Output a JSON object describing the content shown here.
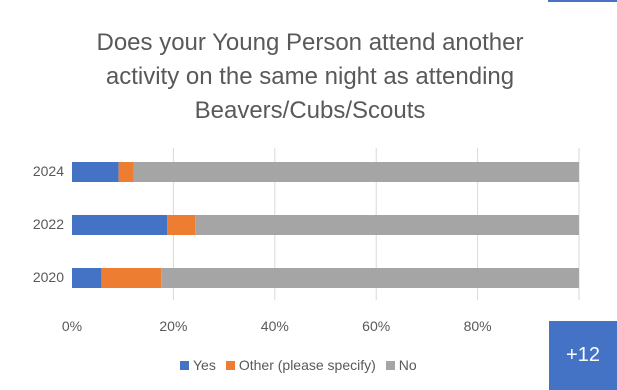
{
  "chart_data": {
    "type": "bar",
    "orientation": "horizontal",
    "stacked": true,
    "title_lines": [
      "Does your Young Person attend another",
      "activity on the same night as attending",
      "Beavers/Cubs/Scouts"
    ],
    "categories": [
      "2024",
      "2022",
      "2020"
    ],
    "series": [
      {
        "name": "Yes",
        "color": "#4472c4",
        "values": [
          9.2,
          18.8,
          5.8
        ]
      },
      {
        "name": "Other (please specify)",
        "color": "#ed7d31",
        "values": [
          3.0,
          5.5,
          11.8
        ]
      },
      {
        "name": "No",
        "color": "#a5a5a5",
        "values": [
          87.8,
          75.7,
          82.4
        ]
      }
    ],
    "x_ticks": [
      "0%",
      "20%",
      "40%",
      "60%",
      "80%"
    ],
    "xlim": [
      0,
      100
    ],
    "grid": true,
    "legend_position": "bottom"
  },
  "overlay": {
    "more_label": "+12"
  }
}
